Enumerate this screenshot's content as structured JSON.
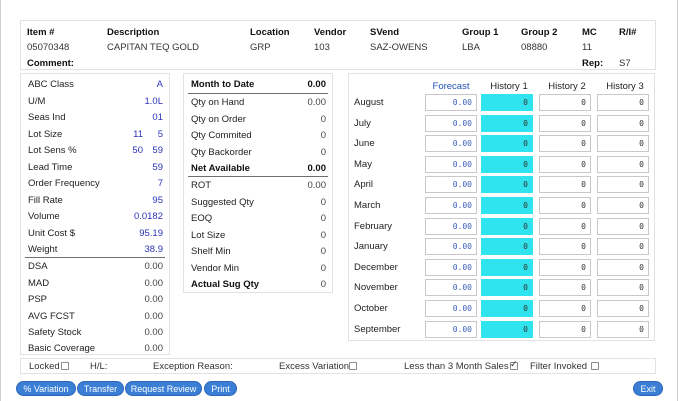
{
  "header": {
    "labels": {
      "item": "Item #",
      "description": "Description",
      "location": "Location",
      "vendor": "Vendor",
      "svend": "SVend",
      "group1": "Group 1",
      "group2": "Group 2",
      "mc": "MC",
      "ri": "R/I#",
      "comment": "Comment:",
      "rep": "Rep:"
    },
    "values": {
      "item": "05070348",
      "description": "CAPITAN TEQ GOLD",
      "location": "GRP",
      "vendor": "103",
      "svend": "SAZ-OWENS",
      "group1": "LBA",
      "group2": "08880",
      "mc": "11",
      "ri": "",
      "comment": "",
      "rep": "S7"
    }
  },
  "left": {
    "abc_class": {
      "label": "ABC Class",
      "value": "A"
    },
    "um": {
      "label": "U/M",
      "value": "1.0L"
    },
    "seas_ind": {
      "label": "Seas Ind",
      "value": "01"
    },
    "lot_size": {
      "label": "Lot Size",
      "value1": "11",
      "value2": "5"
    },
    "lot_sens": {
      "label": "Lot Sens %",
      "value1": "50",
      "value2": "59"
    },
    "lead_time": {
      "label": "Lead Time",
      "value": "59"
    },
    "order_frequency": {
      "label": "Order Frequency",
      "value": "7"
    },
    "fill_rate": {
      "label": "Fill Rate",
      "value": "95"
    },
    "volume": {
      "label": "Volume",
      "value": "0.0182"
    },
    "unit_cost": {
      "label": "Unit Cost $",
      "value": "95.19"
    },
    "weight": {
      "label": "Weight",
      "value": "38.9"
    },
    "dsa": {
      "label": "DSA",
      "value": "0.00"
    },
    "mad": {
      "label": "MAD",
      "value": "0.00"
    },
    "psp": {
      "label": "PSP",
      "value": "0.00"
    },
    "avg_fcst": {
      "label": "AVG FCST",
      "value": "0.00"
    },
    "safety_stock": {
      "label": "Safety Stock",
      "value": "0.00"
    },
    "basic_coverage": {
      "label": "Basic Coverage",
      "value": "0.00"
    }
  },
  "mid": {
    "month_to_date": {
      "label": "Month to Date",
      "value": "0.00"
    },
    "qty_on_hand": {
      "label": "Qty on Hand",
      "value": "0.00"
    },
    "qty_on_order": {
      "label": "Qty on Order",
      "value": "0"
    },
    "qty_commited": {
      "label": "Qty Commited",
      "value": "0"
    },
    "qty_backorder": {
      "label": "Qty Backorder",
      "value": "0"
    },
    "net_available": {
      "label": "Net Available",
      "value": "0.00"
    },
    "rot": {
      "label": "ROT",
      "value": "0.00"
    },
    "suggested_qty": {
      "label": "Suggested Qty",
      "value": "0"
    },
    "eoq": {
      "label": "EOQ",
      "value": "0"
    },
    "lot_size": {
      "label": "Lot Size",
      "value": "0"
    },
    "shelf_min": {
      "label": "Shelf Min",
      "value": "0"
    },
    "vendor_min": {
      "label": "Vendor Min",
      "value": "0"
    },
    "actual_sug_qty": {
      "label": "Actual Sug Qty",
      "value": "0"
    }
  },
  "grid": {
    "headers": [
      "Forecast",
      "History 1",
      "History 2",
      "History 3"
    ],
    "rows": [
      {
        "month": "August",
        "forecast": "0.00",
        "h1": "0",
        "h2": "0",
        "h3": "0"
      },
      {
        "month": "July",
        "forecast": "0.00",
        "h1": "0",
        "h2": "0",
        "h3": "0"
      },
      {
        "month": "June",
        "forecast": "0.00",
        "h1": "0",
        "h2": "0",
        "h3": "0"
      },
      {
        "month": "May",
        "forecast": "0.00",
        "h1": "0",
        "h2": "0",
        "h3": "0"
      },
      {
        "month": "April",
        "forecast": "0.00",
        "h1": "0",
        "h2": "0",
        "h3": "0"
      },
      {
        "month": "March",
        "forecast": "0.00",
        "h1": "0",
        "h2": "0",
        "h3": "0"
      },
      {
        "month": "February",
        "forecast": "0.00",
        "h1": "0",
        "h2": "0",
        "h3": "0"
      },
      {
        "month": "January",
        "forecast": "0.00",
        "h1": "0",
        "h2": "0",
        "h3": "0"
      },
      {
        "month": "December",
        "forecast": "0.00",
        "h1": "0",
        "h2": "0",
        "h3": "0"
      },
      {
        "month": "November",
        "forecast": "0.00",
        "h1": "0",
        "h2": "0",
        "h3": "0"
      },
      {
        "month": "October",
        "forecast": "0.00",
        "h1": "0",
        "h2": "0",
        "h3": "0"
      },
      {
        "month": "September",
        "forecast": "0.00",
        "h1": "0",
        "h2": "0",
        "h3": "0"
      }
    ]
  },
  "flags": {
    "locked": {
      "label": "Locked",
      "checked": false
    },
    "hl": {
      "label": "H/L:"
    },
    "exception_reason": {
      "label": "Exception Reason:"
    },
    "excess_variation": {
      "label": "Excess Variation",
      "checked": false
    },
    "less_than_3": {
      "label": "Less than 3 Month Sales",
      "checked": true
    },
    "filter_invoked": {
      "label": "Filter Invoked",
      "checked": false
    }
  },
  "buttons": {
    "variation": "% Variation",
    "transfer": "Transfer",
    "request_review": "Request Review",
    "print": "Print",
    "exit": "Exit"
  },
  "colors": {
    "accent_blue": "#2b33b8",
    "history1_fill": "#2fe4ee",
    "button_blue": "#3a7fd5"
  }
}
